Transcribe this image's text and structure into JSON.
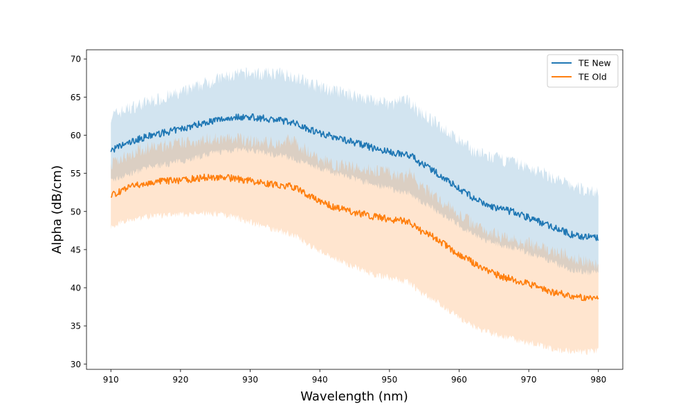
{
  "chart_data": {
    "type": "line",
    "title": "",
    "xlabel": "Wavelength (nm)",
    "ylabel": "Alpha (dB/cm)",
    "xlim": [
      906.5,
      983.5
    ],
    "ylim": [
      29.3,
      71.2
    ],
    "xticks": [
      910,
      920,
      930,
      940,
      950,
      960,
      970,
      980
    ],
    "yticks": [
      30,
      35,
      40,
      45,
      50,
      55,
      60,
      65,
      70
    ],
    "grid": false,
    "legend_position": "top-right",
    "series": [
      {
        "name": "TE New",
        "color": "#1f77b4",
        "band_color": "#1f77b4",
        "band_opacity": 0.2,
        "x": [
          910,
          912,
          914,
          916,
          918,
          920,
          922,
          924,
          926,
          928,
          930,
          932,
          934,
          936,
          938,
          940,
          942,
          944,
          946,
          948,
          950,
          952,
          953,
          954,
          956,
          958,
          960,
          962,
          964,
          966,
          968,
          970,
          972,
          974,
          976,
          978,
          980
        ],
        "mean": [
          58.0,
          58.8,
          59.5,
          60.0,
          60.4,
          60.8,
          61.3,
          61.8,
          62.1,
          62.4,
          62.4,
          62.2,
          62.0,
          61.7,
          61.0,
          60.3,
          59.8,
          59.3,
          58.8,
          58.2,
          57.8,
          57.5,
          57.4,
          56.6,
          55.5,
          54.3,
          53.0,
          51.8,
          50.8,
          50.3,
          49.9,
          49.2,
          48.5,
          47.8,
          47.0,
          46.7,
          46.5
        ],
        "upper": [
          62.5,
          63.3,
          64.0,
          64.5,
          65.0,
          65.5,
          66.2,
          67.0,
          67.5,
          67.9,
          68.1,
          68.0,
          68.1,
          67.8,
          67.0,
          66.3,
          65.8,
          65.4,
          65.0,
          64.5,
          64.0,
          64.5,
          64.4,
          63.2,
          62.0,
          60.7,
          59.2,
          58.0,
          57.2,
          56.8,
          56.4,
          55.7,
          55.0,
          54.2,
          53.4,
          52.8,
          52.6
        ],
        "lower": [
          54.0,
          54.7,
          55.3,
          55.9,
          56.2,
          56.6,
          57.0,
          57.5,
          57.9,
          58.1,
          58.0,
          57.7,
          57.4,
          57.0,
          56.3,
          55.7,
          55.1,
          54.6,
          54.0,
          53.5,
          53.0,
          52.5,
          52.4,
          51.6,
          50.5,
          49.4,
          48.2,
          47.0,
          46.1,
          45.6,
          45.2,
          44.5,
          43.8,
          43.1,
          42.4,
          42.1,
          41.9
        ]
      },
      {
        "name": "TE Old",
        "color": "#ff7f0e",
        "band_color": "#ff7f0e",
        "band_opacity": 0.2,
        "x": [
          910,
          912,
          914,
          916,
          918,
          920,
          922,
          924,
          926,
          928,
          930,
          932,
          934,
          936,
          938,
          940,
          942,
          944,
          946,
          948,
          950,
          952,
          953,
          954,
          956,
          958,
          960,
          962,
          964,
          966,
          968,
          970,
          972,
          974,
          976,
          978,
          980
        ],
        "mean": [
          52.0,
          53.0,
          53.5,
          53.8,
          54.0,
          54.1,
          54.3,
          54.5,
          54.5,
          54.3,
          54.0,
          53.7,
          53.4,
          53.3,
          52.3,
          51.3,
          50.6,
          50.1,
          49.7,
          49.3,
          49.0,
          48.8,
          48.6,
          47.7,
          46.8,
          45.6,
          44.3,
          43.3,
          42.3,
          41.5,
          41.0,
          40.5,
          39.8,
          39.3,
          39.0,
          38.6,
          38.5
        ],
        "upper": [
          56.0,
          57.3,
          58.0,
          58.4,
          58.7,
          58.9,
          59.2,
          59.5,
          59.6,
          59.5,
          59.3,
          59.0,
          58.9,
          59.5,
          58.0,
          56.8,
          56.2,
          55.9,
          55.6,
          55.4,
          55.0,
          54.4,
          55.2,
          53.7,
          52.3,
          51.0,
          49.6,
          48.5,
          47.5,
          46.8,
          46.3,
          45.8,
          45.1,
          44.6,
          44.2,
          43.5,
          43.0
        ],
        "lower": [
          48.0,
          48.8,
          49.2,
          49.4,
          49.5,
          49.6,
          49.7,
          49.8,
          49.6,
          49.2,
          48.6,
          48.1,
          47.5,
          47.0,
          45.9,
          44.8,
          43.9,
          43.1,
          42.4,
          41.7,
          41.3,
          40.9,
          40.6,
          39.6,
          38.6,
          37.4,
          36.0,
          35.0,
          34.2,
          33.6,
          33.2,
          32.8,
          32.3,
          31.9,
          31.7,
          31.6,
          31.8
        ]
      }
    ]
  }
}
